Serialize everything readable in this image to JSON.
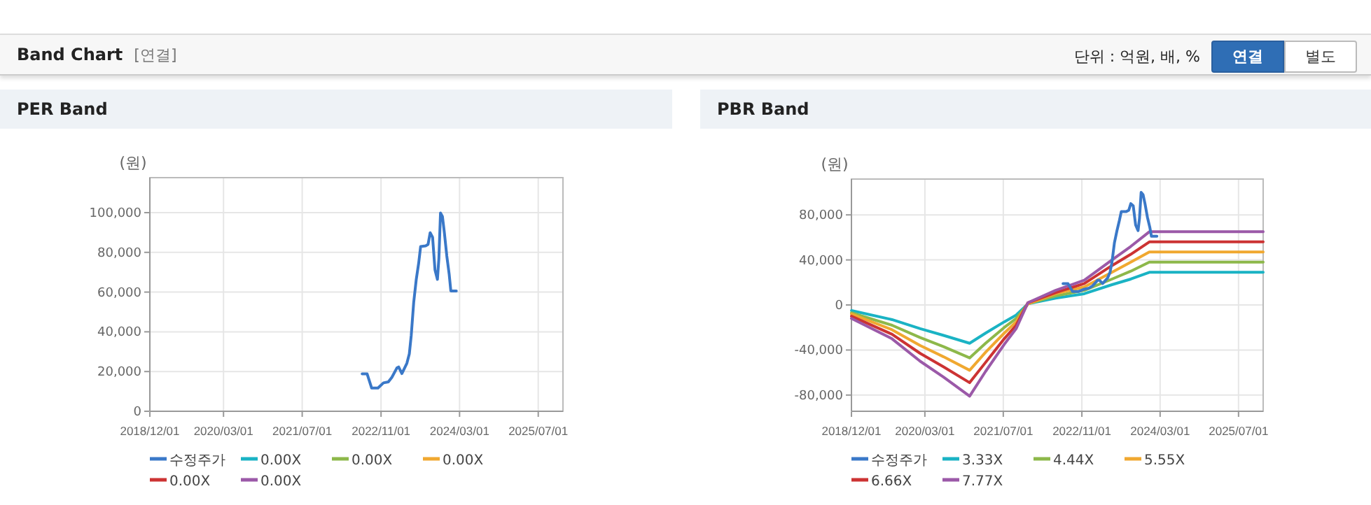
{
  "chart_data": [
    {
      "type": "other",
      "title": "Band Chart",
      "subtitle": "[연결]",
      "annotations": [
        "단위 : 억원, 배, %",
        "연결",
        "별도"
      ]
    },
    {
      "type": "line",
      "title": "PER Band",
      "ylabel": "(원)",
      "xlim": [
        "2018-12-01",
        "2025-12-01"
      ],
      "ylim": [
        0,
        117600
      ],
      "xticks": [
        {
          "value": "2018-12-01",
          "label": "2018/12/01"
        },
        {
          "value": "2020-03-01",
          "label": "2020/03/01"
        },
        {
          "value": "2021-07-01",
          "label": "2021/07/01"
        },
        {
          "value": "2022-11-01",
          "label": "2022/11/01"
        },
        {
          "value": "2024-03-01",
          "label": "2024/03/01"
        },
        {
          "value": "2025-07-01",
          "label": "2025/07/01"
        }
      ],
      "yticks": [
        0,
        {
          "value": 20000,
          "label": "20,000"
        },
        {
          "value": 40000,
          "label": "40,000"
        },
        {
          "value": 60000,
          "label": "60,000"
        },
        {
          "value": 80000,
          "label": "80,000"
        },
        {
          "value": 100000,
          "label": "100,000"
        }
      ],
      "grid": true,
      "legend": "bottom",
      "series": [
        {
          "name": "수정주가",
          "color": "#3a78c8",
          "x": [
            "2022-07-07",
            "2022-08-07",
            "2022-09-04",
            "2022-10-13",
            "2022-11-16",
            "2022-12-16",
            "2023-01-07",
            "2023-02-07",
            "2023-02-18",
            "2023-03-10",
            "2023-04-10",
            "2023-04-25",
            "2023-05-07",
            "2023-05-22",
            "2023-06-07",
            "2023-06-22",
            "2023-07-04",
            "2023-08-04",
            "2023-08-19",
            "2023-09-01",
            "2023-09-16",
            "2023-10-01",
            "2023-10-16",
            "2023-10-25",
            "2023-11-04",
            "2023-11-16",
            "2023-11-28",
            "2023-12-13",
            "2023-12-28",
            "2024-01-07",
            "2024-02-10"
          ],
          "values": [
            18800,
            18800,
            11700,
            11700,
            14300,
            14800,
            17100,
            21800,
            22300,
            19000,
            24200,
            28900,
            38300,
            54700,
            66400,
            74600,
            82900,
            83300,
            84000,
            89900,
            87600,
            71100,
            66400,
            77000,
            99800,
            98100,
            89900,
            78200,
            68800,
            60600,
            60600
          ]
        },
        {
          "name": "0.00X",
          "color": "#1ab3c4",
          "values": [
            null,
            null
          ]
        },
        {
          "name": "0.00X",
          "color": "#8db84a",
          "values": [
            null,
            null
          ]
        },
        {
          "name": "0.00X",
          "color": "#f0a830",
          "values": [
            null,
            null
          ]
        },
        {
          "name": "0.00X",
          "color": "#cc3333",
          "values": [
            null,
            null
          ]
        },
        {
          "name": "0.00X",
          "color": "#9b59a8",
          "values": [
            null,
            null
          ]
        }
      ]
    },
    {
      "type": "line",
      "title": "PBR Band",
      "ylabel": "(원)",
      "xlim": [
        "2018-12-01",
        "2025-12-01"
      ],
      "ylim": [
        -94400,
        111800
      ],
      "xticks": [
        {
          "value": "2018-12-01",
          "label": "2018/12/01"
        },
        {
          "value": "2020-03-01",
          "label": "2020/03/01"
        },
        {
          "value": "2021-07-01",
          "label": "2021/07/01"
        },
        {
          "value": "2022-11-01",
          "label": "2022/11/01"
        },
        {
          "value": "2024-03-01",
          "label": "2024/03/01"
        },
        {
          "value": "2025-07-01",
          "label": "2025/07/01"
        }
      ],
      "yticks": [
        {
          "value": -80000,
          "label": "-80,000"
        },
        {
          "value": -40000,
          "label": "-40,000"
        },
        0,
        {
          "value": 40000,
          "label": "40,000"
        },
        {
          "value": 80000,
          "label": "80,000"
        }
      ],
      "grid": true,
      "legend": "bottom",
      "x": [
        "2018-12-01",
        "2019-08-10",
        "2020-02-01",
        "2020-06-25",
        "2020-12-04",
        "2021-03-13",
        "2021-07-07",
        "2021-09-19",
        "2021-12-01",
        "2022-05-22",
        "2022-11-16",
        "2023-05-07",
        "2023-09-01",
        "2023-12-25",
        "2025-12-01"
      ],
      "series": [
        {
          "name": "수정주가",
          "color": "#3a78c8",
          "x": [
            "2022-07-07",
            "2022-08-07",
            "2022-09-04",
            "2022-10-13",
            "2022-11-16",
            "2022-12-16",
            "2023-01-07",
            "2023-02-07",
            "2023-02-18",
            "2023-03-10",
            "2023-04-10",
            "2023-04-25",
            "2023-05-07",
            "2023-05-22",
            "2023-06-07",
            "2023-06-22",
            "2023-07-04",
            "2023-08-04",
            "2023-08-19",
            "2023-09-01",
            "2023-09-16",
            "2023-10-01",
            "2023-10-16",
            "2023-10-25",
            "2023-11-04",
            "2023-11-16",
            "2023-11-28",
            "2023-12-13",
            "2023-12-28",
            "2024-01-07",
            "2024-02-10"
          ],
          "values": [
            19000,
            19000,
            12000,
            12000,
            14000,
            15000,
            17000,
            22000,
            22000,
            19000,
            24000,
            29000,
            38000,
            55000,
            66000,
            75000,
            83000,
            83000,
            84000,
            90000,
            88000,
            71000,
            66000,
            77000,
            100000,
            98000,
            90000,
            78000,
            69000,
            61000,
            61000
          ]
        },
        {
          "name": "3.33X",
          "color": "#1ab3c4",
          "values": [
            -5000,
            -13000,
            -21000,
            -27000,
            -34000,
            -25000,
            -15000,
            -9000,
            1000,
            6000,
            10000,
            18000,
            23000,
            29000,
            29000
          ]
        },
        {
          "name": "4.44X",
          "color": "#8db84a",
          "values": [
            -7000,
            -18000,
            -29000,
            -37000,
            -47000,
            -34000,
            -20000,
            -12000,
            1000,
            8000,
            13000,
            23000,
            30000,
            38000,
            38000
          ]
        },
        {
          "name": "5.55X",
          "color": "#f0a830",
          "values": [
            -8000,
            -22000,
            -36000,
            -46000,
            -58000,
            -42000,
            -25000,
            -15000,
            1000,
            10000,
            16000,
            29000,
            38000,
            47000,
            47000
          ]
        },
        {
          "name": "6.66X",
          "color": "#cc3333",
          "values": [
            -10000,
            -26000,
            -43000,
            -55000,
            -69000,
            -51000,
            -30000,
            -18000,
            2000,
            11000,
            19000,
            35000,
            45000,
            56000,
            56000
          ]
        },
        {
          "name": "7.77X",
          "color": "#9b59a8",
          "values": [
            -12000,
            -30000,
            -50000,
            -64000,
            -81000,
            -59000,
            -35000,
            -21000,
            2000,
            13000,
            22000,
            40000,
            52000,
            65000,
            65000
          ]
        }
      ]
    }
  ]
}
